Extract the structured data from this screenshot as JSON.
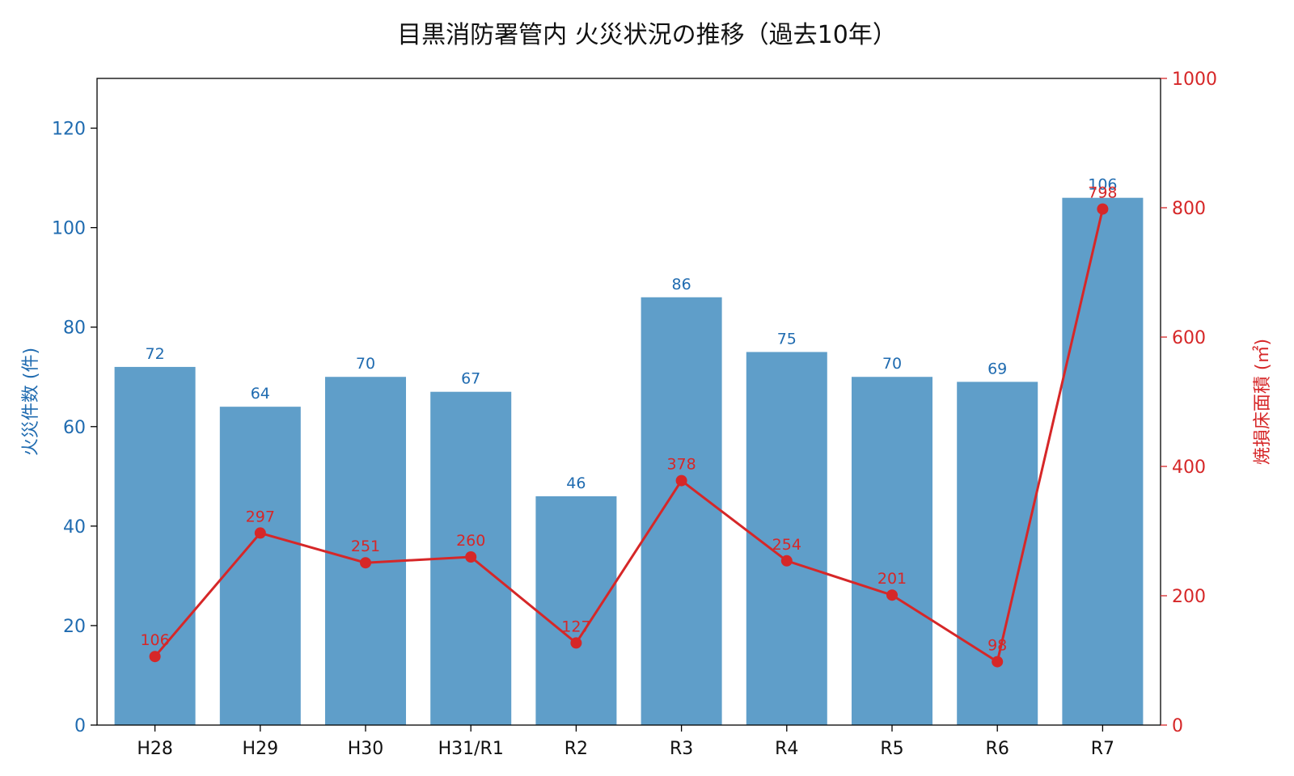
{
  "chart_data": {
    "type": "bar",
    "title": "目黒消防署管内 火災状況の推移（過去10年）",
    "categories": [
      "H28",
      "H29",
      "H30",
      "H31/R1",
      "R2",
      "R3",
      "R4",
      "R5",
      "R6",
      "R7"
    ],
    "series": [
      {
        "name": "火災件数",
        "type": "bar",
        "axis": "left",
        "color": "#5f9ec9",
        "label_color": "#1f6bb0",
        "values": [
          72,
          64,
          70,
          67,
          46,
          86,
          75,
          70,
          69,
          106
        ],
        "labels": [
          "72",
          "64",
          "70",
          "67",
          "46",
          "86",
          "75",
          "70",
          "69",
          "106"
        ]
      },
      {
        "name": "焼損床面積",
        "type": "line",
        "axis": "right",
        "color": "#d62728",
        "values": [
          106,
          297,
          251,
          260,
          127,
          378,
          254,
          201,
          98,
          798
        ],
        "labels": [
          "106",
          "297",
          "251",
          "260",
          "127",
          "378",
          "254",
          "201",
          "98",
          "798"
        ]
      }
    ],
    "y_left": {
      "label": "火災件数 (件)",
      "ylim": [
        0,
        130
      ],
      "ticks": [
        0,
        20,
        40,
        60,
        80,
        100,
        120
      ],
      "tick_labels": [
        "0",
        "20",
        "40",
        "60",
        "80",
        "100",
        "120"
      ],
      "color": "#1f6bb0"
    },
    "y_right": {
      "label": "焼損床面積 (㎡)",
      "ylim": [
        0,
        1000
      ],
      "ticks": [
        0,
        200,
        400,
        600,
        800,
        1000
      ],
      "tick_labels": [
        "0",
        "200",
        "400",
        "600",
        "800",
        "1000"
      ],
      "color": "#d62728"
    },
    "grid": false,
    "legend": "none"
  }
}
